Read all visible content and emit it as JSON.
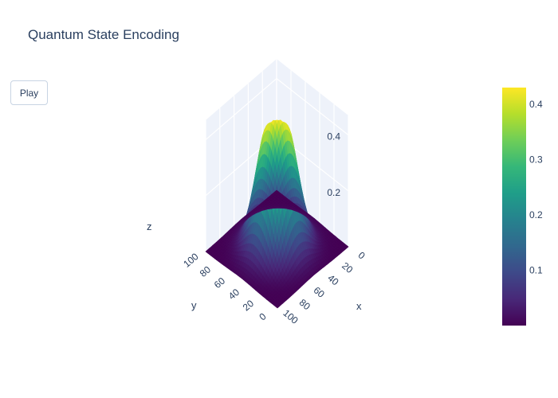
{
  "title": "Quantum State Encoding",
  "controls": {
    "play_label": "Play"
  },
  "chart_data": {
    "type": "surface",
    "title": "Quantum State Encoding",
    "colorscale": "Viridis",
    "colorscale_stops": [
      "#440154",
      "#482878",
      "#3e4989",
      "#31688e",
      "#26828e",
      "#1f9e89",
      "#35b779",
      "#6ece58",
      "#b5de2b",
      "#fde725"
    ],
    "x_axis": {
      "label": "x",
      "range": [
        0,
        100
      ],
      "ticks": [
        "0",
        "20",
        "40",
        "60",
        "80",
        "100"
      ]
    },
    "y_axis": {
      "label": "y",
      "range": [
        0,
        100
      ],
      "ticks": [
        "0",
        "20",
        "40",
        "60",
        "80",
        "100"
      ]
    },
    "z_axis": {
      "label": "z",
      "range": [
        0,
        0.47
      ],
      "ticks": [
        "0.2",
        "0.4"
      ]
    },
    "colorbar": {
      "range": [
        0,
        0.43
      ],
      "ticks": [
        "0.1",
        "0.2",
        "0.3",
        "0.4"
      ]
    },
    "surface": {
      "shape": "gaussian ring",
      "center": [
        50,
        50
      ],
      "ring_radius": 6,
      "width": 16,
      "peak": 0.43,
      "center_value": 0.38,
      "edge_value": 0.0
    },
    "grid": true,
    "colors": {
      "background": "#ffffff",
      "grid": "#e5ecf6",
      "text": "#2a3f5f",
      "wall": "#eef2fa"
    }
  }
}
